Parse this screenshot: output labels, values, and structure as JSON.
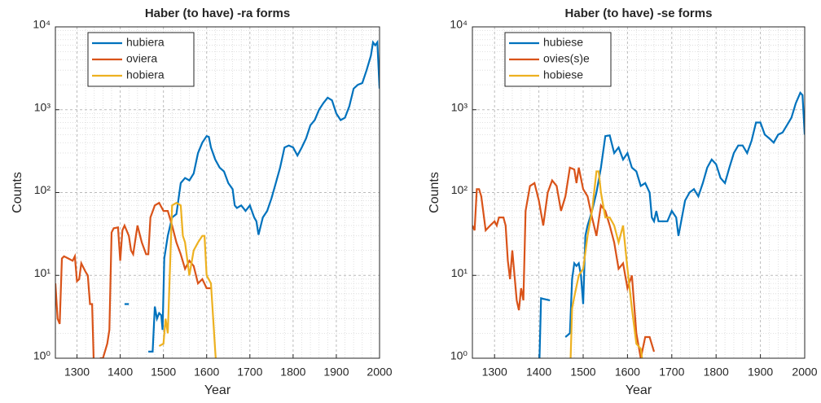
{
  "chart_data": [
    {
      "type": "line",
      "title": "Haber (to have) -ra forms",
      "xlabel": "Year",
      "ylabel": "Counts",
      "xlim": [
        1250,
        2000
      ],
      "xticks": [
        1300,
        1400,
        1500,
        1600,
        1700,
        1800,
        1900,
        2000
      ],
      "ylim": [
        1,
        10000
      ],
      "yscale": "log",
      "yticks": [
        {
          "value": 1,
          "label": "10⁰"
        },
        {
          "value": 10,
          "label": "10¹"
        },
        {
          "value": 100,
          "label": "10²"
        },
        {
          "value": 1000,
          "label": "10³"
        },
        {
          "value": 10000,
          "label": "10⁴"
        }
      ],
      "grid": true,
      "minor_grid": true,
      "legend": "upper left",
      "series": [
        {
          "name": "hubiera",
          "color": "#0072bd",
          "x": [
            1410,
            1420,
            1430,
            1465,
            1475,
            1480,
            1485,
            1490,
            1495,
            1498,
            1502,
            1510,
            1520,
            1530,
            1540,
            1550,
            1560,
            1570,
            1580,
            1590,
            1600,
            1605,
            1610,
            1620,
            1630,
            1640,
            1650,
            1660,
            1665,
            1670,
            1680,
            1690,
            1700,
            1710,
            1715,
            1720,
            1730,
            1740,
            1750,
            1760,
            1770,
            1780,
            1790,
            1800,
            1810,
            1820,
            1830,
            1840,
            1850,
            1860,
            1870,
            1880,
            1890,
            1900,
            1910,
            1920,
            1930,
            1940,
            1950,
            1960,
            1970,
            1980,
            1985,
            1990,
            1995,
            2000
          ],
          "values": [
            4.5,
            4.5,
            null,
            1.2,
            1.2,
            4.2,
            3,
            3.5,
            3.3,
            2.2,
            16,
            30,
            50,
            55,
            130,
            150,
            140,
            170,
            300,
            400,
            480,
            470,
            350,
            250,
            200,
            180,
            130,
            110,
            70,
            65,
            70,
            60,
            70,
            50,
            45,
            31,
            50,
            60,
            85,
            130,
            200,
            350,
            370,
            350,
            280,
            350,
            450,
            650,
            750,
            1000,
            1200,
            1400,
            1300,
            900,
            750,
            800,
            1100,
            1800,
            2000,
            2100,
            3000,
            4500,
            6500,
            6000,
            6500,
            1800
          ]
        },
        {
          "name": "oviera",
          "color": "#d95319",
          "x": [
            1250,
            1255,
            1260,
            1265,
            1270,
            1280,
            1290,
            1295,
            1300,
            1305,
            1310,
            1320,
            1325,
            1330,
            1335,
            1340,
            1350,
            1355,
            1360,
            1370,
            1375,
            1380,
            1385,
            1395,
            1400,
            1405,
            1410,
            1420,
            1425,
            1430,
            1440,
            1450,
            1460,
            1465,
            1470,
            1480,
            1490,
            1500,
            1510,
            1520,
            1530,
            1540,
            1550,
            1560,
            1570,
            1580,
            1590,
            1600,
            1610
          ],
          "values": [
            8,
            3,
            2.6,
            16,
            17,
            16,
            15,
            17,
            8.5,
            9,
            14,
            11,
            10,
            4.5,
            4.5,
            0.5,
            0.5,
            1,
            1,
            1.5,
            2.2,
            33,
            37,
            38,
            15,
            35,
            40,
            30,
            20,
            18,
            40,
            25,
            18,
            18,
            50,
            70,
            75,
            60,
            60,
            40,
            25,
            18,
            12,
            15,
            13,
            8,
            9,
            7,
            7
          ]
        },
        {
          "name": "hobiera",
          "color": "#edb120",
          "x": [
            1490,
            1500,
            1505,
            1510,
            1520,
            1530,
            1540,
            1545,
            1550,
            1560,
            1570,
            1580,
            1590,
            1595,
            1600,
            1610,
            1620,
            1625
          ],
          "values": [
            1.4,
            1.5,
            3,
            2,
            70,
            75,
            70,
            30,
            25,
            10,
            20,
            25,
            30,
            30,
            10,
            8,
            1.2,
            0.5
          ]
        }
      ]
    },
    {
      "type": "line",
      "title": "Haber (to have) -se forms",
      "xlabel": "Year",
      "ylabel": "Counts",
      "xlim": [
        1250,
        2000
      ],
      "xticks": [
        1300,
        1400,
        1500,
        1600,
        1700,
        1800,
        1900,
        2000
      ],
      "ylim": [
        1,
        10000
      ],
      "yscale": "log",
      "yticks": [
        {
          "value": 1,
          "label": "10⁰"
        },
        {
          "value": 10,
          "label": "10¹"
        },
        {
          "value": 100,
          "label": "10²"
        },
        {
          "value": 1000,
          "label": "10³"
        },
        {
          "value": 10000,
          "label": "10⁴"
        }
      ],
      "grid": true,
      "minor_grid": true,
      "legend": "upper left",
      "series": [
        {
          "name": "hubiese",
          "color": "#0072bd",
          "x": [
            1400,
            1405,
            1410,
            1425,
            1440,
            1460,
            1470,
            1475,
            1480,
            1485,
            1490,
            1495,
            1500,
            1505,
            1510,
            1520,
            1530,
            1540,
            1550,
            1560,
            1570,
            1580,
            1590,
            1600,
            1610,
            1620,
            1630,
            1640,
            1650,
            1655,
            1660,
            1665,
            1670,
            1680,
            1690,
            1700,
            1710,
            1715,
            1730,
            1740,
            1750,
            1760,
            1770,
            1780,
            1790,
            1800,
            1810,
            1820,
            1830,
            1840,
            1850,
            1860,
            1870,
            1880,
            1890,
            1900,
            1910,
            1920,
            1930,
            1940,
            1950,
            1960,
            1970,
            1980,
            1990,
            1995,
            2000
          ],
          "values": [
            0.5,
            5.3,
            5.2,
            5,
            null,
            1.8,
            2,
            9,
            14,
            13,
            14,
            10,
            4.5,
            30,
            40,
            60,
            100,
            200,
            480,
            490,
            300,
            350,
            250,
            300,
            200,
            180,
            120,
            130,
            100,
            50,
            45,
            60,
            45,
            45,
            45,
            60,
            50,
            30,
            80,
            100,
            110,
            90,
            130,
            200,
            250,
            220,
            150,
            130,
            200,
            300,
            370,
            370,
            300,
            420,
            700,
            700,
            500,
            450,
            400,
            500,
            530,
            650,
            800,
            1200,
            1600,
            1500,
            500
          ]
        },
        {
          "name": "ovies(s)e",
          "color": "#d95319",
          "x": [
            1250,
            1255,
            1260,
            1265,
            1270,
            1280,
            1290,
            1300,
            1305,
            1310,
            1320,
            1325,
            1330,
            1335,
            1340,
            1345,
            1350,
            1355,
            1360,
            1365,
            1370,
            1380,
            1390,
            1400,
            1410,
            1420,
            1430,
            1440,
            1450,
            1460,
            1470,
            1480,
            1485,
            1490,
            1500,
            1510,
            1520,
            1530,
            1540,
            1550,
            1560,
            1570,
            1580,
            1590,
            1600,
            1610,
            1620,
            1630,
            1640,
            1650,
            1660
          ],
          "values": [
            40,
            35,
            110,
            110,
            90,
            35,
            40,
            45,
            40,
            50,
            50,
            40,
            15,
            9,
            20,
            10,
            5,
            3.8,
            7,
            5,
            60,
            120,
            130,
            80,
            40,
            100,
            140,
            120,
            60,
            90,
            200,
            190,
            130,
            200,
            110,
            90,
            50,
            30,
            70,
            60,
            40,
            25,
            12,
            14,
            7,
            10,
            2,
            1,
            1.8,
            1.8,
            1.2
          ]
        },
        {
          "name": "hobiese",
          "color": "#edb120",
          "x": [
            1470,
            1475,
            1480,
            1490,
            1500,
            1510,
            1520,
            1530,
            1535,
            1540,
            1550,
            1560,
            1570,
            1580,
            1590,
            1600,
            1610,
            1620,
            1630,
            1640
          ],
          "values": [
            0.5,
            4,
            5.5,
            10,
            12,
            30,
            60,
            180,
            180,
            100,
            50,
            50,
            40,
            25,
            40,
            12,
            4,
            1.5,
            1.3,
            0.5
          ]
        }
      ]
    }
  ]
}
